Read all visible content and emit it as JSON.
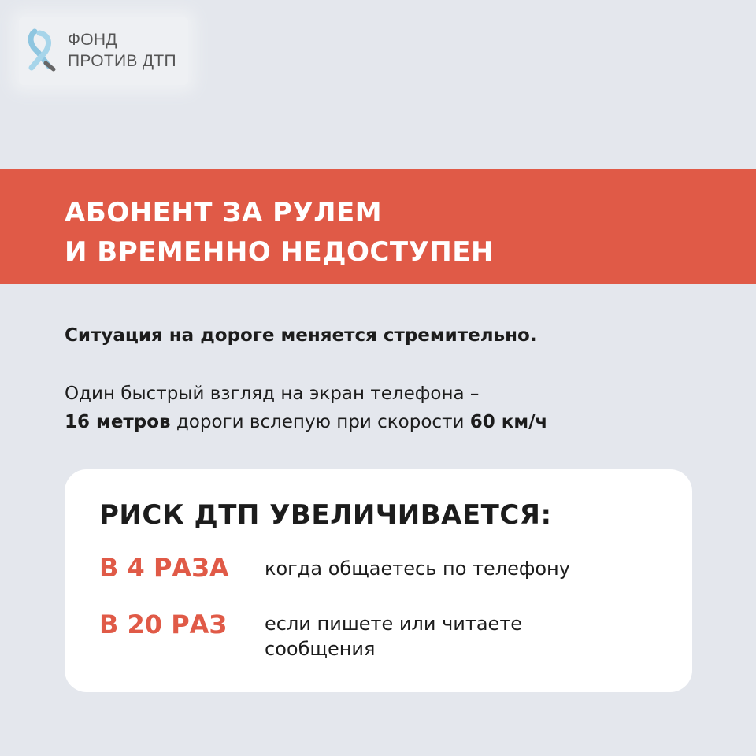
{
  "logo": {
    "line1": "ФОНД",
    "line2": "ПРОТИВ ДТП",
    "icon": "ribbon-icon"
  },
  "banner": {
    "line1": "АБОНЕНТ ЗА РУЛЕМ",
    "line2": "И ВРЕМЕННО НЕДОСТУПЕН"
  },
  "lead": "Ситуация на дороге меняется стремительно.",
  "body": {
    "part1": "Один быстрый взгляд на экран телефона –",
    "bold1": "16 метров",
    "part2": " дороги вслепую при скорости ",
    "bold2": "60 км/ч"
  },
  "card": {
    "title": "РИСК ДТП УВЕЛИЧИВАЕТСЯ:",
    "items": [
      {
        "factor": "В 4 РАЗА",
        "desc": "когда общаетесь по телефону"
      },
      {
        "factor": "В 20 РАЗ",
        "desc": "если пишете или читаете сообщения"
      }
    ]
  },
  "colors": {
    "accent": "#e05a47",
    "background": "#e4e7ed",
    "card": "#ffffff"
  }
}
